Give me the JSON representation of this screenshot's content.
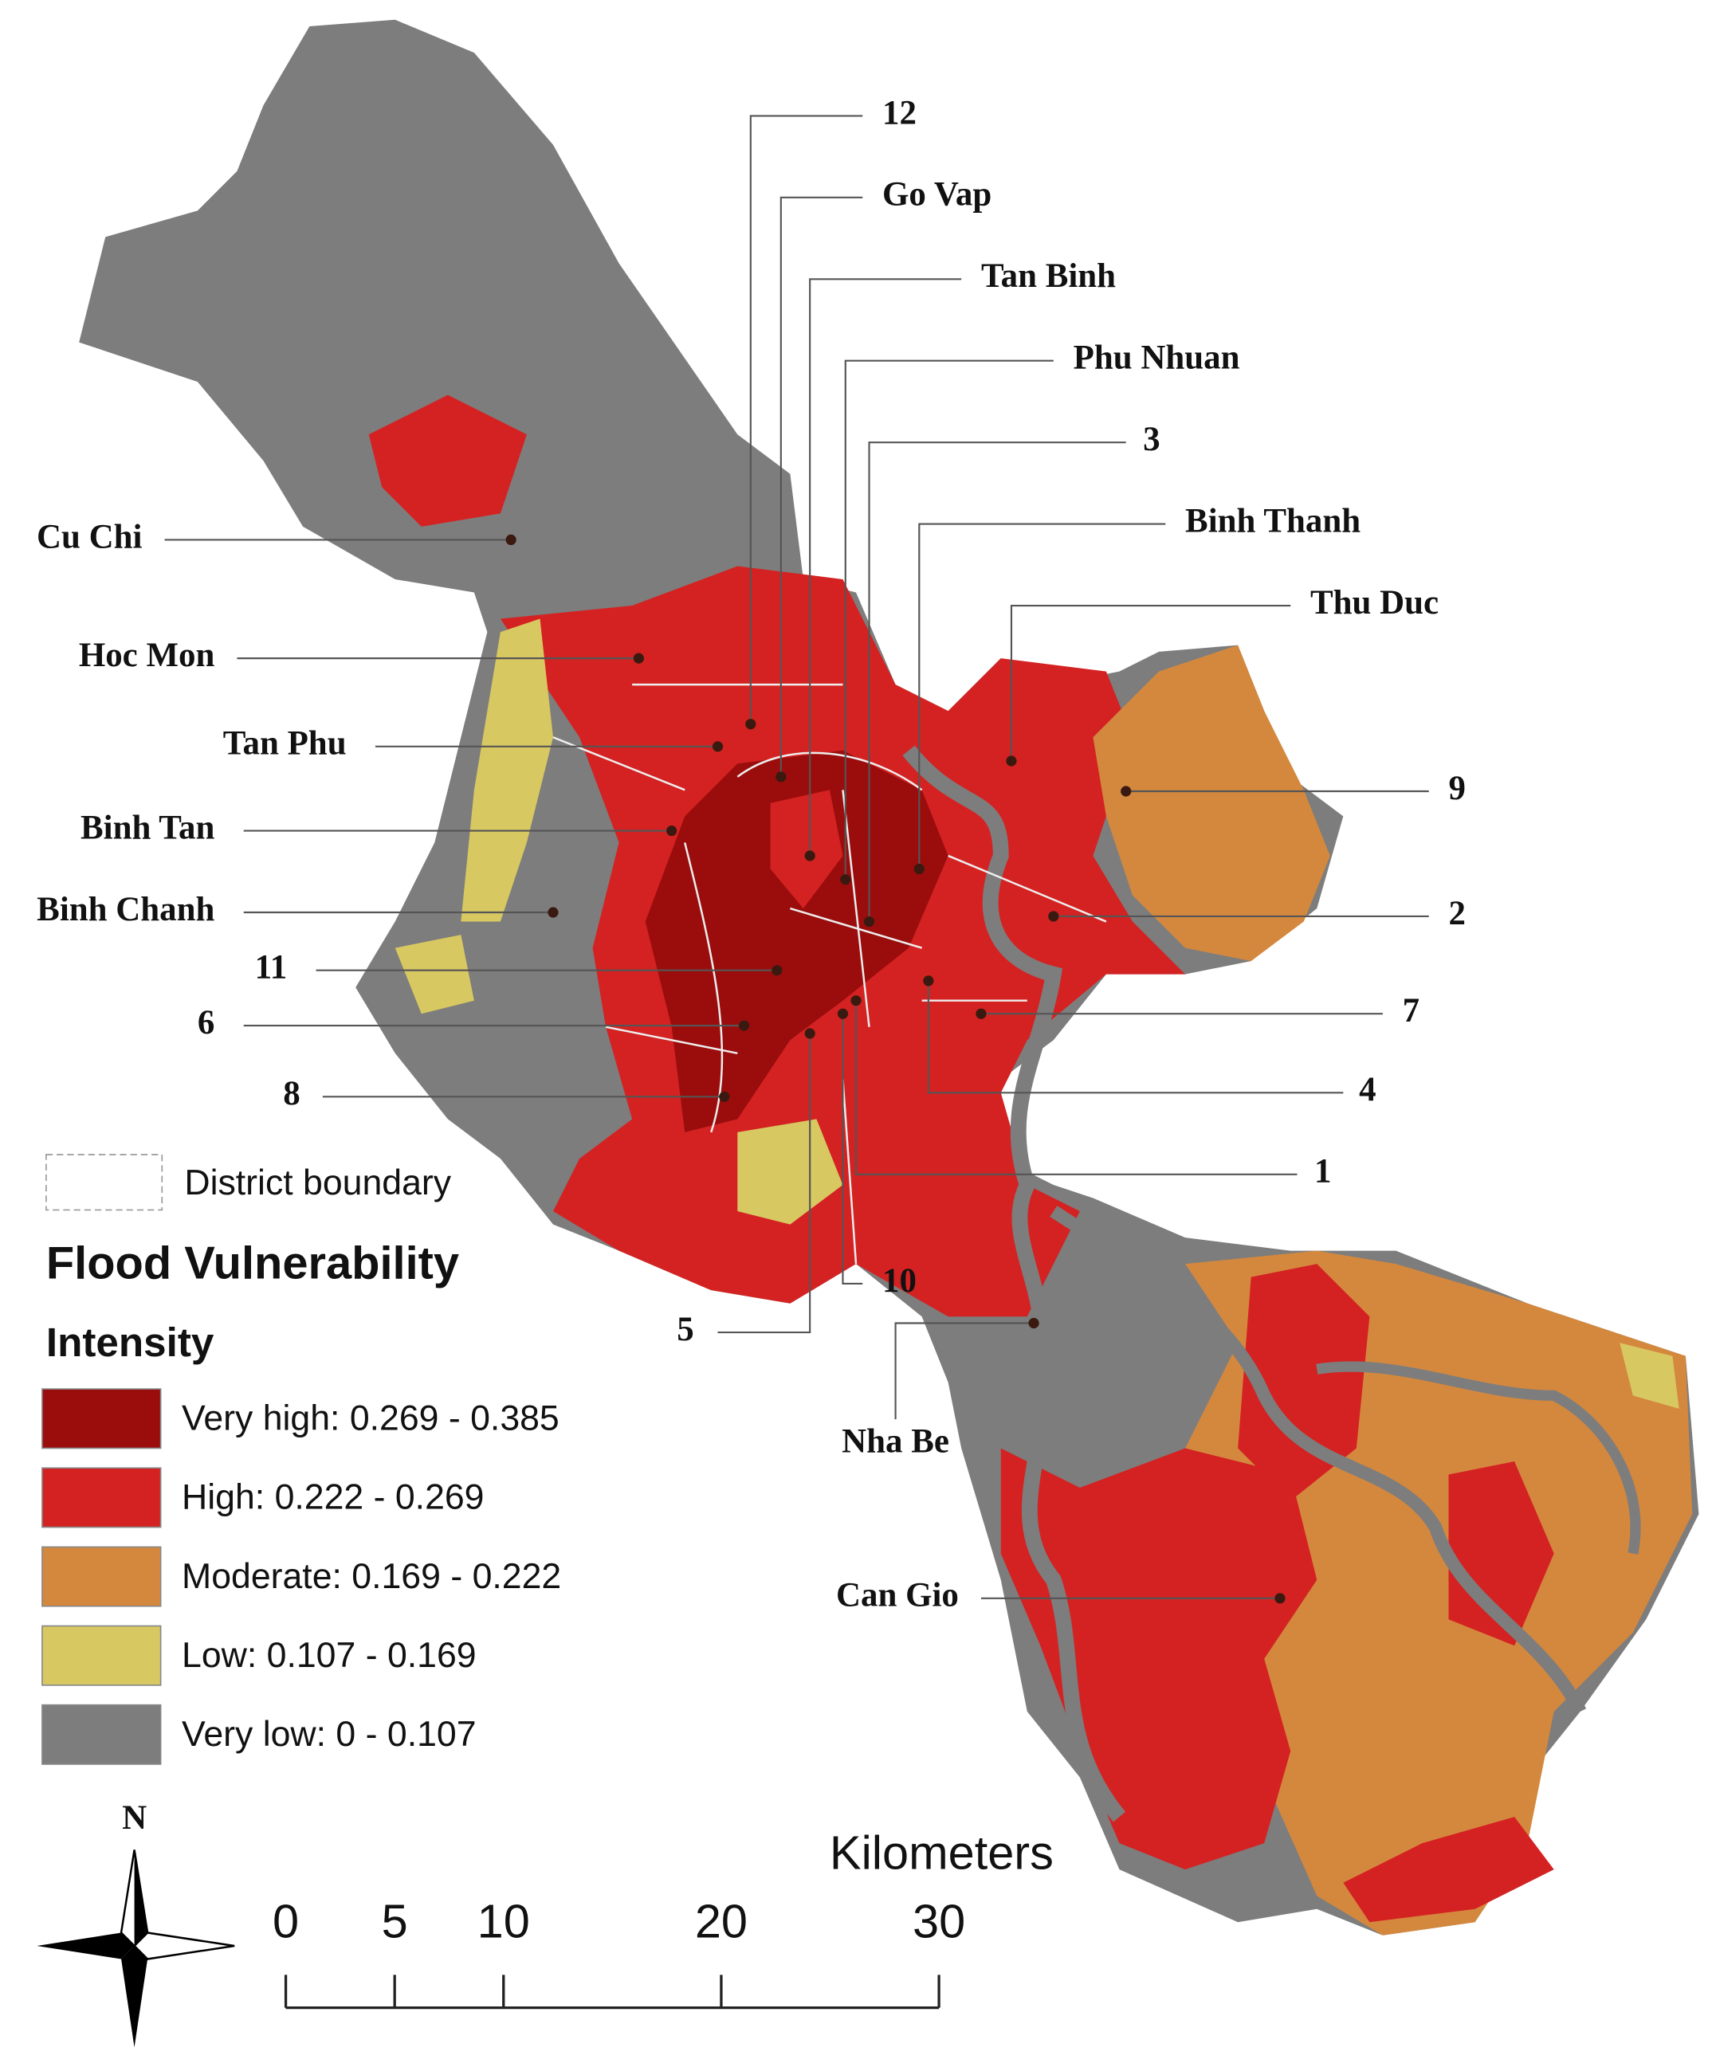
{
  "map": {
    "labels": [
      "12",
      "Go Vap",
      "Tan Binh",
      "Phu Nhuan",
      "3",
      "Binh Thanh",
      "Thu Duc",
      "9",
      "2",
      "7",
      "4",
      "1",
      "10",
      "5",
      "Nha Be",
      "Cu Chi",
      "Hoc Mon",
      "Tan Phu",
      "Binh Tan",
      "Binh Chanh",
      "11",
      "6",
      "8",
      "Can Gio"
    ]
  },
  "legend": {
    "boundary_label": "District boundary",
    "title": "Flood Vulnerability",
    "subtitle": "Intensity",
    "classes": [
      {
        "label": "Very high: 0.269 - 0.385",
        "color": "#9b0d0d"
      },
      {
        "label": "High: 0.222 - 0.269",
        "color": "#d42222"
      },
      {
        "label": "Moderate: 0.169 - 0.222",
        "color": "#d4883e"
      },
      {
        "label": "Low: 0.107 - 0.169",
        "color": "#d8c862"
      },
      {
        "label": "Very low: 0 - 0.107",
        "color": "#7d7d7d"
      }
    ]
  },
  "scale_bar": {
    "unit": "Kilometers",
    "xlim": [
      0,
      30
    ],
    "xticks": [
      0,
      5,
      10,
      20,
      30
    ]
  },
  "north": "N"
}
